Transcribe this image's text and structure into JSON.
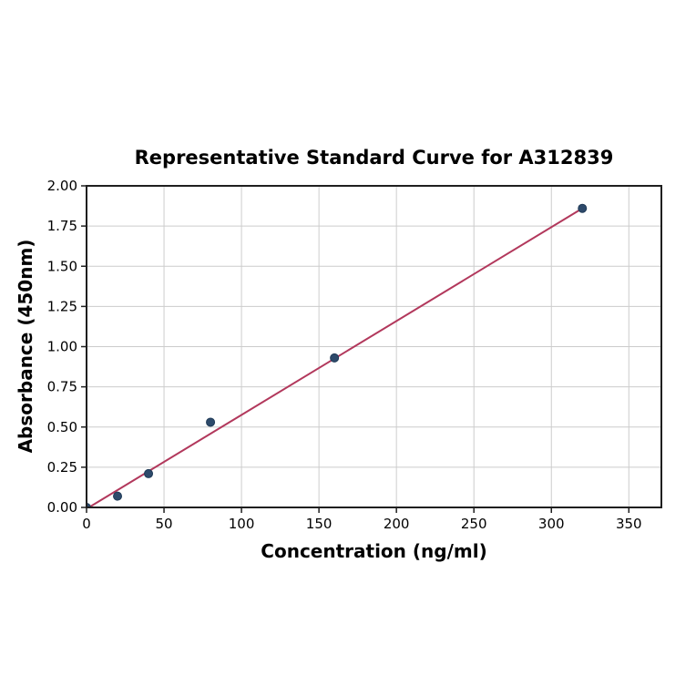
{
  "page": {
    "background": "#ffffff"
  },
  "chart_data": {
    "type": "scatter",
    "title": "Representative Standard Curve for A312839",
    "xlabel": "Concentration (ng/ml)",
    "ylabel": "Absorbance (450nm)",
    "xlim": [
      0,
      371
    ],
    "ylim": [
      0,
      2.0
    ],
    "x_ticks": [
      0,
      50,
      100,
      150,
      200,
      250,
      300,
      350
    ],
    "y_ticks": [
      0.0,
      0.25,
      0.5,
      0.75,
      1.0,
      1.25,
      1.5,
      1.75,
      2.0
    ],
    "grid": true,
    "legend": "none",
    "series": [
      {
        "name": "linear-fit",
        "type": "line",
        "x": [
          1.5,
          320
        ],
        "y": [
          0.0,
          1.86
        ]
      },
      {
        "name": "standards",
        "type": "scatter",
        "x": [
          0,
          20,
          40,
          80,
          160,
          320
        ],
        "y": [
          0.0,
          0.07,
          0.21,
          0.53,
          0.93,
          1.86
        ]
      }
    ],
    "colors": {
      "marker": "#2e4a6b",
      "marker_edge": "#1f3a57",
      "fit_line": "#b2385c",
      "grid": "#cccccc",
      "spine": "#1f1f1f",
      "text": "#000000"
    }
  }
}
